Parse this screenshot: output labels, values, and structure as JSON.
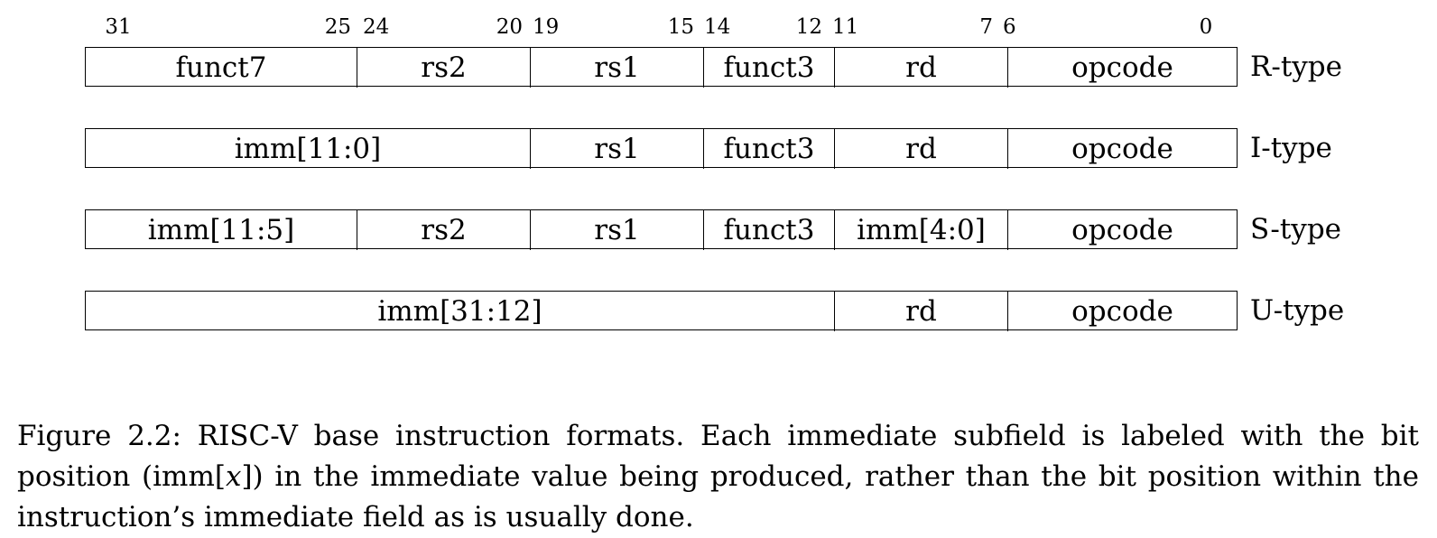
{
  "bit_labels": [
    "31",
    "25",
    "24",
    "20",
    "19",
    "15",
    "14",
    "12",
    "11",
    "7",
    "6",
    "0"
  ],
  "formats": [
    {
      "name": "R-type",
      "fields": [
        "funct7",
        "rs2",
        "rs1",
        "funct3",
        "rd",
        "opcode"
      ]
    },
    {
      "name": "I-type",
      "fields": [
        "imm[11:0]",
        "rs1",
        "funct3",
        "rd",
        "opcode"
      ]
    },
    {
      "name": "S-type",
      "fields": [
        "imm[11:5]",
        "rs2",
        "rs1",
        "funct3",
        "imm[4:0]",
        "opcode"
      ]
    },
    {
      "name": "U-type",
      "fields": [
        "imm[31:12]",
        "rd",
        "opcode"
      ]
    }
  ],
  "caption": {
    "part1": "Figure 2.2: RISC-V base instruction formats.  Each immediate subfield is labeled with the bit position (imm[",
    "var": "x",
    "part2": "]) in the immediate value being produced, rather than the bit position within the instruction’s immediate field as is usually done."
  }
}
